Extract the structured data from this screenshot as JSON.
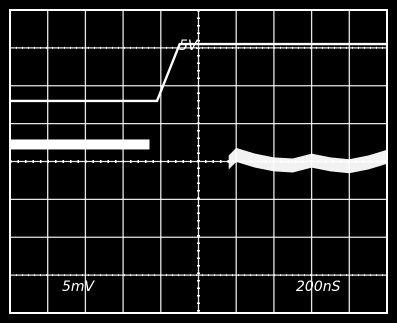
{
  "chart_data": {
    "type": "line",
    "grid": true,
    "x_divisions": 10,
    "y_divisions": 8,
    "x_units_per_div": "200ns",
    "colors": {
      "background": "#000000",
      "frame": "#ffffff",
      "grid": "#ffffff",
      "trace": "#ffffff"
    },
    "labels": {
      "edge_marker": "5V",
      "ch_scale": "5mV",
      "time_scale": "200nS"
    },
    "series": [
      {
        "x": [
          0,
          3.9,
          4.5,
          10
        ],
        "y": [
          1.6,
          1.6,
          3.1,
          3.1
        ]
      },
      {
        "x": [
          0,
          3.7,
          5.8,
          6.0,
          6.5,
          7.0,
          7.5,
          8.0,
          8.5,
          9.0,
          9.5,
          10
        ],
        "y": [
          0.45,
          0.45,
          0,
          0.2,
          0.05,
          -0.05,
          -0.08,
          0.05,
          -0.05,
          -0.1,
          0.0,
          0.15
        ]
      }
    ]
  }
}
